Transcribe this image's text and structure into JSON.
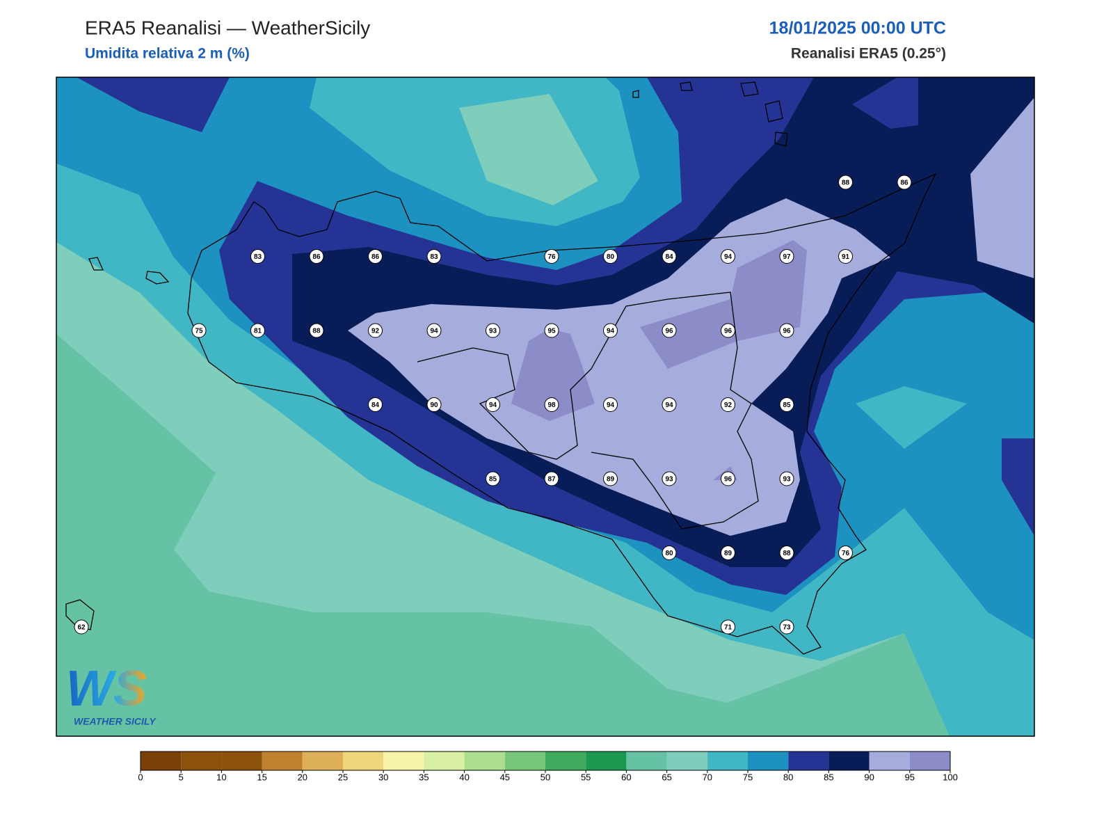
{
  "header": {
    "title": "ERA5 Reanalisi — WeatherSicily",
    "subtitle": "Umidita relativa 2 m (%)",
    "datetime": "18/01/2025 00:00 UTC",
    "source": "Reanalisi ERA5 (0.25°)"
  },
  "map": {
    "stations": [
      [
        null,
        null,
        null,
        null,
        null,
        null,
        null,
        null,
        null,
        null,
        null,
        null,
        null,
        88,
        86
      ],
      [
        null,
        null,
        null,
        83,
        86,
        86,
        83,
        null,
        76,
        80,
        84,
        94,
        97,
        91,
        null
      ],
      [
        null,
        null,
        75,
        81,
        88,
        92,
        94,
        93,
        95,
        94,
        96,
        96,
        96,
        null,
        null
      ],
      [
        null,
        null,
        null,
        null,
        null,
        84,
        90,
        94,
        98,
        94,
        94,
        92,
        85,
        null,
        null
      ],
      [
        null,
        null,
        null,
        null,
        null,
        null,
        null,
        85,
        87,
        89,
        93,
        96,
        93,
        null,
        null
      ],
      [
        null,
        null,
        null,
        null,
        null,
        null,
        null,
        null,
        null,
        null,
        80,
        89,
        88,
        76,
        null
      ],
      [
        62,
        null,
        null,
        null,
        null,
        null,
        null,
        null,
        null,
        null,
        null,
        71,
        73,
        null,
        null
      ]
    ]
  },
  "colorbar": {
    "levels": [
      0,
      5,
      10,
      15,
      20,
      25,
      30,
      35,
      40,
      45,
      50,
      55,
      60,
      65,
      70,
      75,
      80,
      85,
      90,
      95,
      100
    ],
    "colors": [
      "#7b4006",
      "#8c510a",
      "#8c510a",
      "#bf812d",
      "#dfb05a",
      "#f0d67a",
      "#f6f5a9",
      "#d9efa4",
      "#addd8e",
      "#78c679",
      "#41ab5d",
      "#1a9850",
      "#66c2a5",
      "#7fcdbb",
      "#41b6c4",
      "#1d91c0",
      "#253494",
      "#081d58",
      "#a6acdb",
      "#8c8cc8"
    ]
  },
  "logo": {
    "text": "WS",
    "tagline": "WEATHER SICILY"
  }
}
